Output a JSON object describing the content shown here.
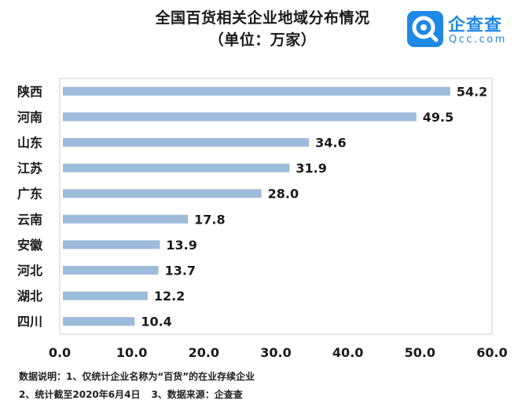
{
  "chart_data": {
    "type": "bar",
    "orientation": "horizontal",
    "title": "全国百货相关企业地域分布情况",
    "subtitle": "（单位：万家）",
    "categories": [
      "陕西",
      "河南",
      "山东",
      "江苏",
      "广东",
      "云南",
      "安徽",
      "河北",
      "湖北",
      "四川"
    ],
    "values": [
      54.2,
      49.5,
      34.6,
      31.9,
      28.0,
      17.8,
      13.9,
      13.7,
      12.2,
      10.4
    ],
    "value_labels": [
      "54.2",
      "49.5",
      "34.6",
      "31.9",
      "28.0",
      "17.8",
      "13.9",
      "13.7",
      "12.2",
      "10.4"
    ],
    "xlim": [
      0,
      60
    ],
    "x_ticks": [
      "0.0",
      "10.0",
      "20.0",
      "30.0",
      "40.0",
      "50.0",
      "60.0"
    ],
    "x_tick_values": [
      0,
      10,
      20,
      30,
      40,
      50,
      60
    ],
    "grid": false,
    "bar_color": "#9dbbdb",
    "frame_color": "#cfcfcf"
  },
  "logo": {
    "name": "企查查",
    "domain": "Qcc.com",
    "color": "#1e88e5",
    "icon": "qcc-logo-icon"
  },
  "notes": {
    "line1": "数据说明：1、仅统计企业名称为“百货”的在业存续企业",
    "line2_a": "2、统计截至2020年6月4日",
    "line2_b": "3、数据来源：企查查"
  }
}
